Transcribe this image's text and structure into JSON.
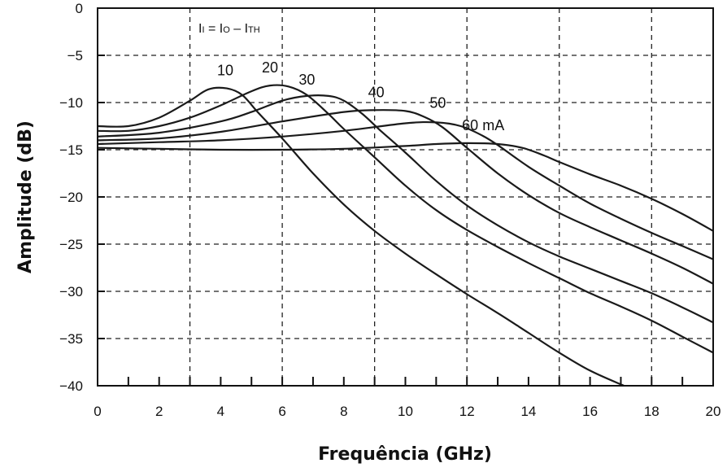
{
  "chart_data": {
    "type": "line",
    "title": "",
    "xlabel": "Frequência (GHz)",
    "ylabel": "Amplitude  (dB)",
    "xlim": [
      0,
      20
    ],
    "ylim": [
      -40,
      0
    ],
    "xticks": [
      0,
      2,
      4,
      6,
      8,
      10,
      12,
      14,
      16,
      18,
      20
    ],
    "yticks": [
      0,
      -5,
      -10,
      -15,
      -20,
      -25,
      -30,
      -35,
      -40
    ],
    "grid": "dashed",
    "grid_x": [
      3,
      6,
      9,
      12,
      15,
      18
    ],
    "grid_y": [
      -5,
      -10,
      -15,
      -20,
      -25,
      -30,
      -35
    ],
    "annotation": {
      "symbol_1": "I",
      "sub_1": "I",
      "eq": " = ",
      "symbol_2": "I",
      "sub_2": "O",
      "minus": " – ",
      "symbol_3": "I",
      "sub_3": "TH"
    },
    "series": [
      {
        "label": "10",
        "x": [
          0,
          1,
          2,
          3,
          3.6,
          4.2,
          4.7,
          5.2,
          6,
          7,
          8,
          9,
          10,
          11,
          12,
          13,
          14,
          15,
          16,
          17.1
        ],
        "y": [
          -12.5,
          -12.5,
          -11.6,
          -9.8,
          -8.6,
          -8.5,
          -9.2,
          -11,
          -13.8,
          -17.5,
          -20.8,
          -23.6,
          -26,
          -28.2,
          -30.3,
          -32.3,
          -34.4,
          -36.5,
          -38.4,
          -40
        ]
      },
      {
        "label": "20",
        "x": [
          0,
          1,
          2,
          3,
          4,
          5,
          5.6,
          6.2,
          6.8,
          7.5,
          8,
          9,
          10,
          11,
          12,
          13,
          14,
          15,
          16,
          17,
          18,
          19,
          20
        ],
        "y": [
          -13,
          -13,
          -12.5,
          -11.6,
          -10.3,
          -8.8,
          -8.2,
          -8.3,
          -9.2,
          -11.2,
          -12.8,
          -15.8,
          -18.8,
          -21.4,
          -23.5,
          -25.3,
          -27,
          -28.6,
          -30.2,
          -31.6,
          -33.1,
          -34.8,
          -36.5
        ]
      },
      {
        "label": "30",
        "x": [
          0,
          2,
          4,
          5,
          6,
          6.8,
          7.5,
          8,
          8.6,
          9.2,
          10,
          11,
          12,
          13,
          14,
          15,
          16,
          17,
          18,
          19,
          20
        ],
        "y": [
          -13.6,
          -13.2,
          -12,
          -11,
          -9.8,
          -9.3,
          -9.3,
          -9.8,
          -11.2,
          -13,
          -15.3,
          -18.3,
          -20.9,
          -23,
          -24.8,
          -26.3,
          -27.6,
          -28.9,
          -30.2,
          -31.7,
          -33.3
        ]
      },
      {
        "label": "40",
        "x": [
          0,
          2,
          4,
          6,
          8,
          9,
          10,
          10.6,
          11.2,
          12,
          13,
          14,
          15,
          16,
          17,
          18,
          19,
          20
        ],
        "y": [
          -14,
          -13.8,
          -13.1,
          -12,
          -11,
          -10.8,
          -10.9,
          -11.5,
          -12.6,
          -14.8,
          -17.5,
          -19.8,
          -21.7,
          -23.2,
          -24.6,
          -26,
          -27.5,
          -29.2
        ]
      },
      {
        "label": "50",
        "x": [
          0,
          2,
          4,
          6,
          8,
          10,
          11,
          11.8,
          12.5,
          13,
          14,
          15,
          16,
          17,
          18,
          19,
          20
        ],
        "y": [
          -14.4,
          -14.2,
          -14,
          -13.6,
          -13,
          -12.2,
          -12.1,
          -12.5,
          -13.5,
          -14.5,
          -16.8,
          -18.8,
          -20.7,
          -22.3,
          -23.8,
          -25.2,
          -26.6
        ]
      },
      {
        "label": "60 mA",
        "x": [
          0,
          2,
          4,
          6,
          8,
          10,
          11,
          12,
          13,
          13.8,
          14.5,
          15,
          16,
          17,
          18,
          19,
          20
        ],
        "y": [
          -14.8,
          -14.9,
          -15,
          -15,
          -14.9,
          -14.6,
          -14.4,
          -14.3,
          -14.4,
          -14.8,
          -15.6,
          -16.3,
          -17.6,
          -18.8,
          -20.2,
          -21.8,
          -23.6
        ]
      }
    ]
  }
}
